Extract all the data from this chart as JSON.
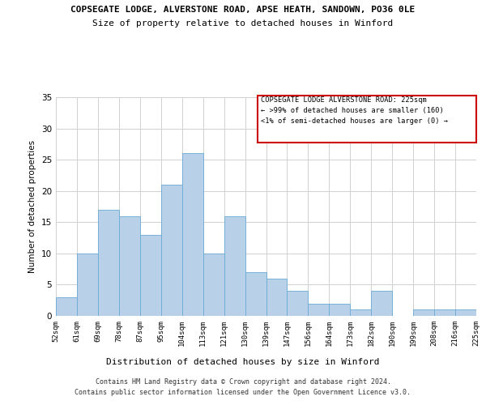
{
  "title_line1": "COPSEGATE LODGE, ALVERSTONE ROAD, APSE HEATH, SANDOWN, PO36 0LE",
  "title_line2": "Size of property relative to detached houses in Winford",
  "xlabel": "Distribution of detached houses by size in Winford",
  "ylabel": "Number of detached properties",
  "categories": [
    "52sqm",
    "61sqm",
    "69sqm",
    "78sqm",
    "87sqm",
    "95sqm",
    "104sqm",
    "113sqm",
    "121sqm",
    "130sqm",
    "139sqm",
    "147sqm",
    "156sqm",
    "164sqm",
    "173sqm",
    "182sqm",
    "190sqm",
    "199sqm",
    "208sqm",
    "216sqm",
    "225sqm"
  ],
  "values": [
    3,
    10,
    17,
    16,
    13,
    21,
    26,
    10,
    16,
    7,
    6,
    4,
    2,
    2,
    1,
    4,
    0,
    1,
    1,
    1
  ],
  "bar_color": "#b8d0e8",
  "bar_edge_color": "#6aaad4",
  "ylim": [
    0,
    35
  ],
  "yticks": [
    0,
    5,
    10,
    15,
    20,
    25,
    30,
    35
  ],
  "grid_color": "#d0d0d0",
  "annotation_title": "COPSEGATE LODGE ALVERSTONE ROAD: 225sqm",
  "annotation_line1": "← >99% of detached houses are smaller (160)",
  "annotation_line2": "<1% of semi-detached houses are larger (0) →",
  "annotation_box_color": "#ffffff",
  "annotation_box_edge": "#cc0000",
  "footer_line1": "Contains HM Land Registry data © Crown copyright and database right 2024.",
  "footer_line2": "Contains public sector information licensed under the Open Government Licence v3.0.",
  "background_color": "#ffffff"
}
